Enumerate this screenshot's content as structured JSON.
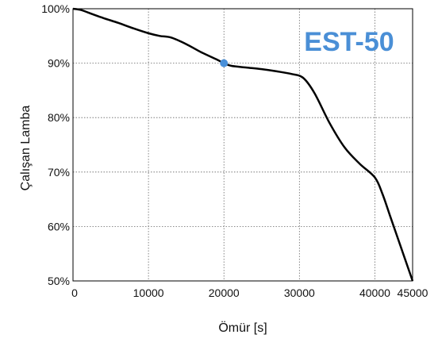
{
  "chart_data": {
    "type": "line",
    "xlabel": "Ömür [s]",
    "ylabel": "Çalışan Lamba",
    "xlim": [
      0,
      45000
    ],
    "ylim": [
      50,
      100
    ],
    "x_ticks": [
      0,
      10000,
      20000,
      30000,
      40000,
      45000
    ],
    "x_tick_labels": [
      "0",
      "10000",
      "20000",
      "30000",
      "40000",
      "45000"
    ],
    "y_ticks": [
      50,
      60,
      70,
      80,
      90,
      100
    ],
    "y_tick_labels": [
      "50%",
      "60%",
      "70%",
      "80%",
      "90%",
      "100%"
    ],
    "grid": true,
    "annotation": "EST-50",
    "colors": {
      "line": "#000000",
      "marker": "#4a90d9",
      "annotation": "#4a8fd6",
      "grid": "#666666"
    },
    "series": [
      {
        "x": [
          0,
          1000,
          2000,
          4000,
          6000,
          8000,
          10000,
          11500,
          13000,
          15000,
          17000,
          19000,
          20000,
          21000,
          23000,
          25000,
          27000,
          29000,
          30500,
          32000,
          34000,
          36000,
          38000,
          40000,
          41000,
          42000,
          43000,
          44000,
          45000
        ],
        "y": [
          100,
          99.8,
          99.3,
          98.3,
          97.4,
          96.4,
          95.5,
          95.0,
          94.7,
          93.5,
          92.0,
          90.7,
          90.0,
          89.5,
          89.2,
          88.9,
          88.5,
          88.0,
          87.3,
          84.5,
          79.0,
          74.5,
          71.5,
          69.0,
          66.0,
          62.0,
          58.0,
          54.0,
          50.0
        ]
      }
    ],
    "highlight_point": {
      "x": 20000,
      "y": 90
    }
  }
}
